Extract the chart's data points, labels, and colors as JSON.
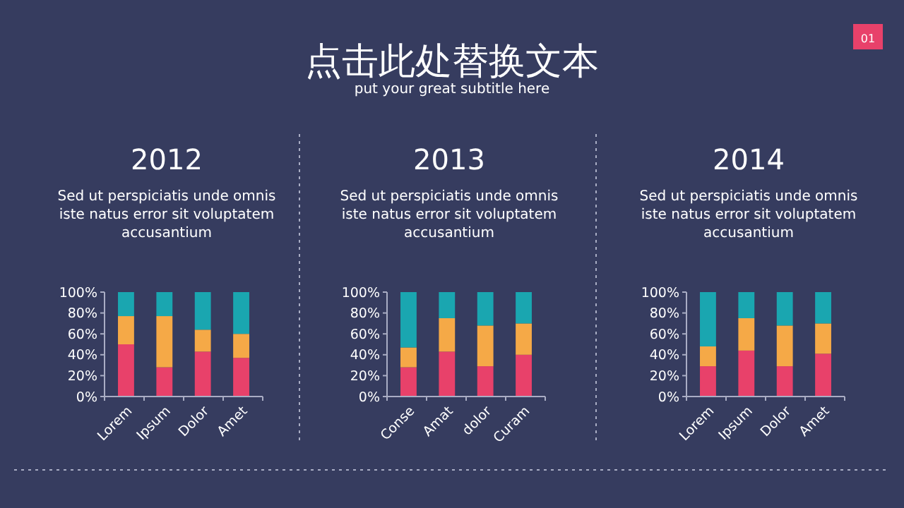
{
  "chart_data": [
    {
      "type": "other",
      "title": "点击此处替换文本",
      "subtitle": "put your great subtitle here",
      "annotations": [
        "01"
      ]
    },
    {
      "type": "bar",
      "stacked": true,
      "title": "2012",
      "subtitle": "Sed ut perspiciatis unde omnis iste natus error sit voluptatem accusantium",
      "categories": [
        "Lorem",
        "Ipsum",
        "Dolor",
        "Amet"
      ],
      "ylim": [
        0,
        100
      ],
      "yticks": [
        {
          "value": 0,
          "label": "0%"
        },
        {
          "value": 20,
          "label": "20%"
        },
        {
          "value": 40,
          "label": "40%"
        },
        {
          "value": 60,
          "label": "60%"
        },
        {
          "value": 80,
          "label": "80%"
        },
        {
          "value": 100,
          "label": "100%"
        }
      ],
      "series": [
        {
          "color": "#e8416a",
          "values": [
            50,
            28,
            43,
            37
          ]
        },
        {
          "color": "#f5a947",
          "values": [
            27,
            49,
            21,
            23
          ]
        },
        {
          "color": "#1aa6b0",
          "values": [
            23,
            23,
            36,
            40
          ]
        }
      ]
    },
    {
      "type": "bar",
      "stacked": true,
      "title": "2013",
      "subtitle": "Sed ut perspiciatis unde omnis iste natus error sit voluptatem accusantium",
      "categories": [
        "Conse",
        "Amat",
        "dolor",
        "Curam"
      ],
      "ylim": [
        0,
        100
      ],
      "yticks": [
        {
          "value": 0,
          "label": "0%"
        },
        {
          "value": 20,
          "label": "20%"
        },
        {
          "value": 40,
          "label": "40%"
        },
        {
          "value": 60,
          "label": "60%"
        },
        {
          "value": 80,
          "label": "80%"
        },
        {
          "value": 100,
          "label": "100%"
        }
      ],
      "series": [
        {
          "color": "#e8416a",
          "values": [
            28,
            43,
            29,
            40
          ]
        },
        {
          "color": "#f5a947",
          "values": [
            19,
            32,
            39,
            30
          ]
        },
        {
          "color": "#1aa6b0",
          "values": [
            53,
            25,
            32,
            30
          ]
        }
      ]
    },
    {
      "type": "bar",
      "stacked": true,
      "title": "2014",
      "subtitle": "Sed ut perspiciatis unde omnis iste natus error sit voluptatem accusantium",
      "categories": [
        "Lorem",
        "Ipsum",
        "Dolor",
        "Amet"
      ],
      "ylim": [
        0,
        100
      ],
      "yticks": [
        {
          "value": 0,
          "label": "0%"
        },
        {
          "value": 20,
          "label": "20%"
        },
        {
          "value": 40,
          "label": "40%"
        },
        {
          "value": 60,
          "label": "60%"
        },
        {
          "value": 80,
          "label": "80%"
        },
        {
          "value": 100,
          "label": "100%"
        }
      ],
      "series": [
        {
          "color": "#e8416a",
          "values": [
            29,
            44,
            29,
            41
          ]
        },
        {
          "color": "#f5a947",
          "values": [
            19,
            31,
            39,
            29
          ]
        },
        {
          "color": "#1aa6b0",
          "values": [
            52,
            25,
            32,
            30
          ]
        }
      ]
    }
  ]
}
